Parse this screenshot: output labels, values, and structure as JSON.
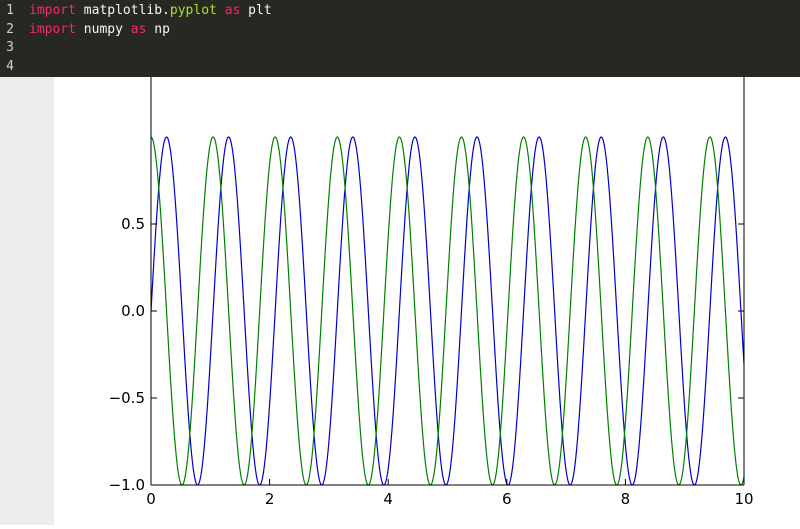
{
  "editor": {
    "lines": [
      {
        "number": "1",
        "tokens": [
          {
            "t": "import",
            "c": "kw"
          },
          {
            "t": " matplotlib.",
            "c": "plain"
          },
          {
            "t": "pyplot",
            "c": "attr"
          },
          {
            "t": " ",
            "c": "plain"
          },
          {
            "t": "as",
            "c": "kw"
          },
          {
            "t": " plt",
            "c": "plain"
          }
        ]
      },
      {
        "number": "2",
        "tokens": [
          {
            "t": "import",
            "c": "kw"
          },
          {
            "t": " numpy ",
            "c": "plain"
          },
          {
            "t": "as",
            "c": "kw"
          },
          {
            "t": " np",
            "c": "plain"
          }
        ]
      },
      {
        "number": "3",
        "tokens": []
      },
      {
        "number": "4",
        "tokens": []
      }
    ]
  },
  "colors": {
    "editor_bg": "#272822",
    "keyword": "#f92672",
    "attribute": "#a6e22e",
    "text": "#f8f8f2",
    "series_blue": "#0000cc",
    "series_green": "#008000"
  },
  "chart_data": {
    "type": "line",
    "title": "",
    "xlabel": "",
    "ylabel": "",
    "xlim": [
      0,
      10
    ],
    "ylim": [
      -1.0,
      1.0
    ],
    "visible_ylim": [
      -1.0,
      0.75
    ],
    "xticks": [
      0,
      2,
      4,
      6,
      8,
      10
    ],
    "xtick_labels": [
      "0",
      "2",
      "4",
      "6",
      "8",
      "10"
    ],
    "yticks": [
      -1.0,
      -0.5,
      0.0,
      0.5
    ],
    "ytick_labels": [
      "−1.0",
      "−0.5",
      "0.0",
      "0.5"
    ],
    "grid": false,
    "series": [
      {
        "color": "#0000cc",
        "function": "sin",
        "angular_frequency": 6.0
      },
      {
        "color": "#008000",
        "function": "cos",
        "angular_frequency": 6.0
      }
    ]
  }
}
